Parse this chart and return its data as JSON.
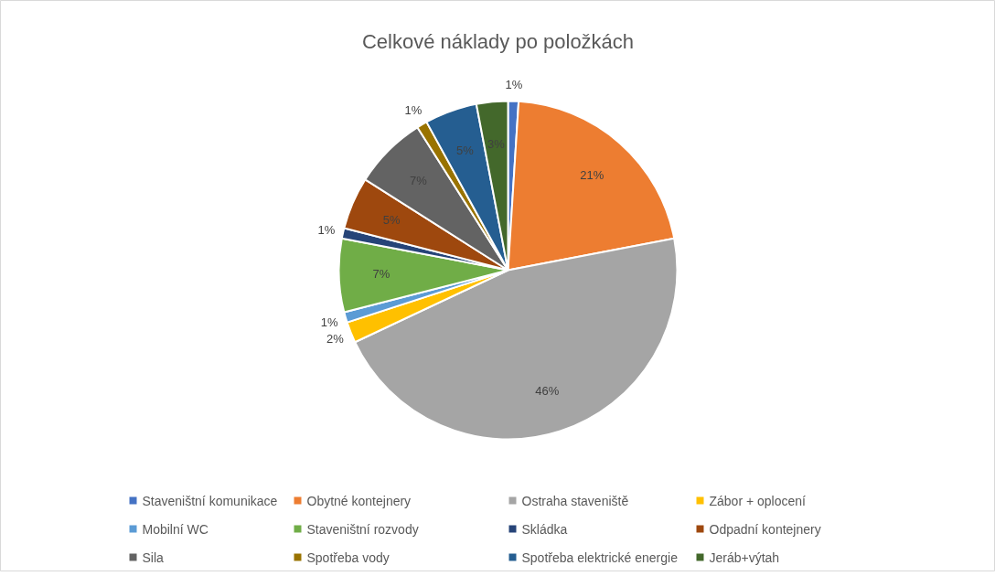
{
  "chart_data": {
    "type": "pie",
    "title": "Celkové náklady po položkách",
    "categories": [
      "Staveništní komunikace",
      "Obytné kontejnery",
      "Ostraha staveniště",
      "Zábor + oplocení",
      "Mobilní WC",
      "Staveništní rozvody",
      "Skládka",
      "Odpadní kontejnery",
      "Sila",
      "Spotřeba vody",
      "Spotřeba elektrické energie",
      "Jeráb+výtah"
    ],
    "values": [
      1,
      21,
      46,
      2,
      1,
      7,
      1,
      5,
      7,
      1,
      5,
      3
    ],
    "colors": [
      "#4472c4",
      "#ed7d31",
      "#a5a5a5",
      "#ffc000",
      "#5b9bd5",
      "#70ad47",
      "#264478",
      "#9e480e",
      "#636363",
      "#997300",
      "#255e91",
      "#43682b"
    ],
    "value_labels": [
      "1%",
      "21%",
      "46%",
      "2%",
      "1%",
      "7%",
      "1%",
      "5%",
      "7%",
      "1%",
      "5%",
      "3%"
    ],
    "legend": "bottom"
  }
}
